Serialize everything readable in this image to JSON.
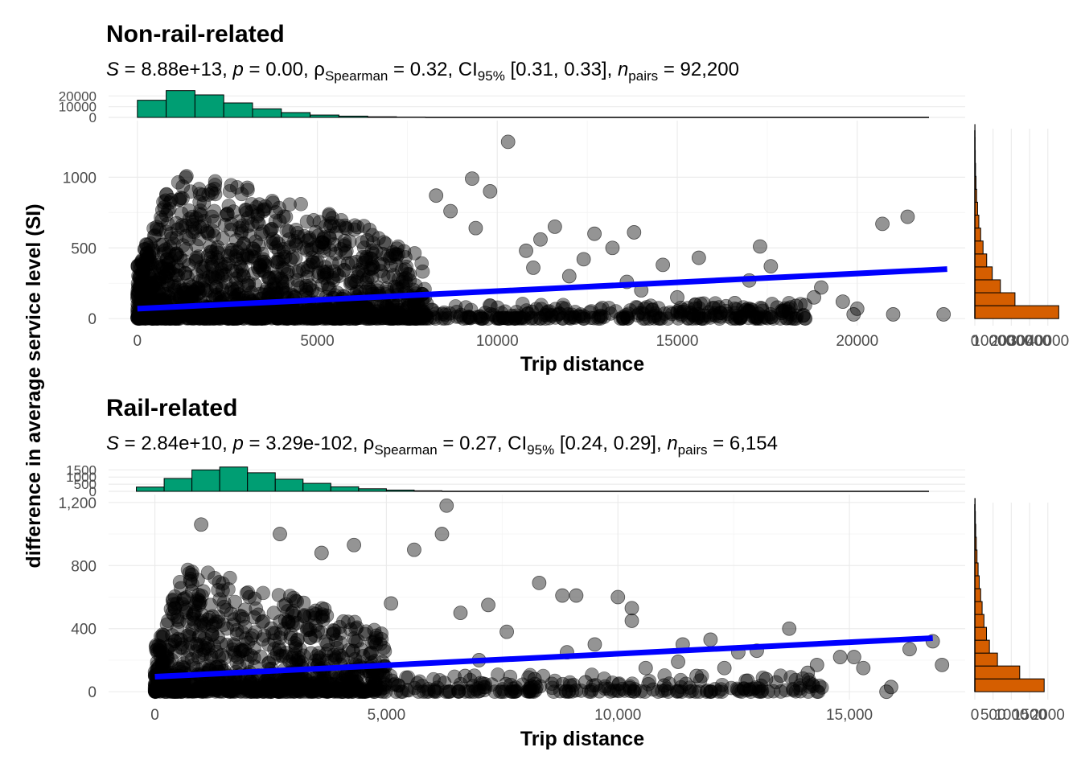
{
  "y_axis_label": "difference in average service level (SI)",
  "chart_data": [
    {
      "type": "scatter",
      "panel": "top",
      "title": "Non-rail-related",
      "stats": {
        "S_label": "S",
        "S_value": "8.88e+13",
        "p_label": "p",
        "p_value": "0.00",
        "rho_symbol": "ρ",
        "rho_sub": "Spearman",
        "rho_value": "0.32",
        "ci_label": "CI",
        "ci_sub": "95%",
        "ci_value": "[0.31, 0.33]",
        "n_label": "n",
        "n_sub": "pairs",
        "n_value": "92,200"
      },
      "xlabel": "Trip distance",
      "ylabel": "difference in average service level (SI)",
      "xlim": [
        -800,
        23000
      ],
      "ylim": [
        -50,
        1400
      ],
      "x_ticks": [
        0,
        5000,
        10000,
        15000,
        20000
      ],
      "x_tick_labels": [
        "0",
        "5000",
        "10000",
        "15000",
        "20000"
      ],
      "y_ticks": [
        0,
        500,
        1000
      ],
      "y_tick_labels": [
        "0",
        "500",
        "1000"
      ],
      "point_cloud": {
        "x_max": 8000,
        "y_peak": 1050,
        "count": 1400
      },
      "points": [
        [
          10300,
          1250
        ],
        [
          21400,
          720
        ],
        [
          20700,
          670
        ],
        [
          9800,
          900
        ],
        [
          9300,
          990
        ],
        [
          8300,
          870
        ],
        [
          11200,
          560
        ],
        [
          11600,
          650
        ],
        [
          12700,
          600
        ],
        [
          13800,
          610
        ],
        [
          15600,
          430
        ],
        [
          17300,
          510
        ],
        [
          17600,
          370
        ],
        [
          14600,
          380
        ],
        [
          13200,
          500
        ],
        [
          19000,
          220
        ],
        [
          18800,
          150
        ],
        [
          19600,
          120
        ],
        [
          20000,
          70
        ],
        [
          19900,
          30
        ],
        [
          22400,
          30
        ],
        [
          16600,
          110
        ],
        [
          16900,
          60
        ],
        [
          15500,
          100
        ],
        [
          15000,
          150
        ],
        [
          12400,
          420
        ],
        [
          10800,
          480
        ],
        [
          11000,
          360
        ],
        [
          9400,
          640
        ],
        [
          8700,
          760
        ],
        [
          14000,
          200
        ],
        [
          13600,
          260
        ],
        [
          17900,
          40
        ],
        [
          18300,
          90
        ],
        [
          12000,
          300
        ],
        [
          14300,
          60
        ],
        [
          16200,
          40
        ],
        [
          17000,
          270
        ],
        [
          18500,
          20
        ],
        [
          21000,
          30
        ]
      ],
      "trend": {
        "x": [
          0,
          22500
        ],
        "y": [
          70,
          350
        ],
        "color": "#0000ff"
      },
      "x_histogram": {
        "color": "#009e73",
        "bins": [
          0,
          800,
          1600,
          2400,
          3200,
          4000,
          4800,
          5600,
          6400,
          7200,
          8000
        ],
        "counts": [
          16000,
          25000,
          21000,
          13500,
          8000,
          4500,
          2200,
          1200,
          600,
          300
        ],
        "y_tick_labels": [
          "0",
          "10000",
          "20000"
        ],
        "y_ticks": [
          0,
          10000,
          20000
        ]
      },
      "y_histogram": {
        "color": "#d55e00",
        "counts": [
          46000,
          22000,
          14000,
          9500,
          6500,
          4500,
          3200,
          2200,
          1500,
          1000,
          650,
          400,
          250,
          150,
          80
        ],
        "x_tick_labels": [
          "0",
          "10000",
          "20000",
          "30000",
          "40000"
        ],
        "x_ticks": [
          0,
          10000,
          20000,
          30000,
          40000
        ]
      }
    },
    {
      "type": "scatter",
      "panel": "bottom",
      "title": "Rail-related",
      "stats": {
        "S_label": "S",
        "S_value": "2.84e+10",
        "p_label": "p",
        "p_value": "3.29e-102",
        "rho_symbol": "ρ",
        "rho_sub": "Spearman",
        "rho_value": "0.27",
        "ci_label": "CI",
        "ci_sub": "95%",
        "ci_value": "[0.24, 0.29]",
        "n_label": "n",
        "n_sub": "pairs",
        "n_value": "6,154"
      },
      "xlabel": "Trip distance",
      "ylabel": "difference in average service level (SI)",
      "xlim": [
        -1000,
        17500
      ],
      "ylim": [
        -50,
        1250
      ],
      "x_ticks": [
        0,
        5000,
        10000,
        15000
      ],
      "x_tick_labels": [
        "0",
        "5,000",
        "10,000",
        "15,000"
      ],
      "y_ticks": [
        0,
        400,
        800,
        1200
      ],
      "y_tick_labels": [
        "0",
        "400",
        "800",
        "1,200"
      ],
      "point_cloud": {
        "x_max": 5000,
        "y_peak": 800,
        "count": 900
      },
      "points": [
        [
          6300,
          1180
        ],
        [
          6200,
          1000
        ],
        [
          5600,
          900
        ],
        [
          4300,
          930
        ],
        [
          3600,
          880
        ],
        [
          2700,
          1000
        ],
        [
          1000,
          1060
        ],
        [
          5100,
          560
        ],
        [
          6600,
          500
        ],
        [
          7200,
          550
        ],
        [
          8300,
          690
        ],
        [
          8800,
          610
        ],
        [
          9100,
          610
        ],
        [
          10000,
          600
        ],
        [
          10300,
          530
        ],
        [
          10300,
          450
        ],
        [
          13700,
          400
        ],
        [
          12000,
          330
        ],
        [
          11400,
          300
        ],
        [
          12600,
          250
        ],
        [
          13000,
          260
        ],
        [
          14100,
          120
        ],
        [
          14800,
          220
        ],
        [
          15100,
          220
        ],
        [
          15300,
          150
        ],
        [
          16300,
          270
        ],
        [
          17000,
          170
        ],
        [
          15800,
          0
        ],
        [
          15900,
          30
        ],
        [
          13200,
          80
        ],
        [
          11700,
          100
        ],
        [
          11000,
          40
        ],
        [
          9500,
          300
        ],
        [
          9300,
          60
        ],
        [
          7600,
          380
        ],
        [
          8200,
          80
        ],
        [
          12800,
          70
        ],
        [
          10600,
          150
        ],
        [
          7000,
          200
        ],
        [
          6700,
          100
        ],
        [
          14300,
          170
        ],
        [
          11300,
          190
        ],
        [
          12300,
          150
        ],
        [
          8900,
          250
        ],
        [
          16800,
          320
        ]
      ],
      "trend": {
        "x": [
          0,
          16800
        ],
        "y": [
          95,
          340
        ],
        "color": "#0000ff"
      },
      "x_histogram": {
        "color": "#009e73",
        "bins": [
          -400,
          200,
          800,
          1400,
          2000,
          2600,
          3200,
          3800,
          4400,
          5000,
          5600,
          6200
        ],
        "counts": [
          300,
          900,
          1500,
          1700,
          1300,
          850,
          560,
          320,
          180,
          90,
          40
        ],
        "y_tick_labels": [
          "0",
          "500",
          "1000",
          "1500"
        ],
        "y_ticks": [
          0,
          500,
          1000,
          1500
        ]
      },
      "y_histogram": {
        "color": "#d55e00",
        "counts": [
          1900,
          1230,
          620,
          400,
          320,
          250,
          200,
          160,
          120,
          90,
          60,
          40,
          25,
          15,
          8
        ],
        "x_tick_labels": [
          "0",
          "500",
          "1000",
          "1500",
          "2000"
        ],
        "x_ticks": [
          0,
          500,
          1000,
          1500,
          2000
        ]
      }
    }
  ]
}
